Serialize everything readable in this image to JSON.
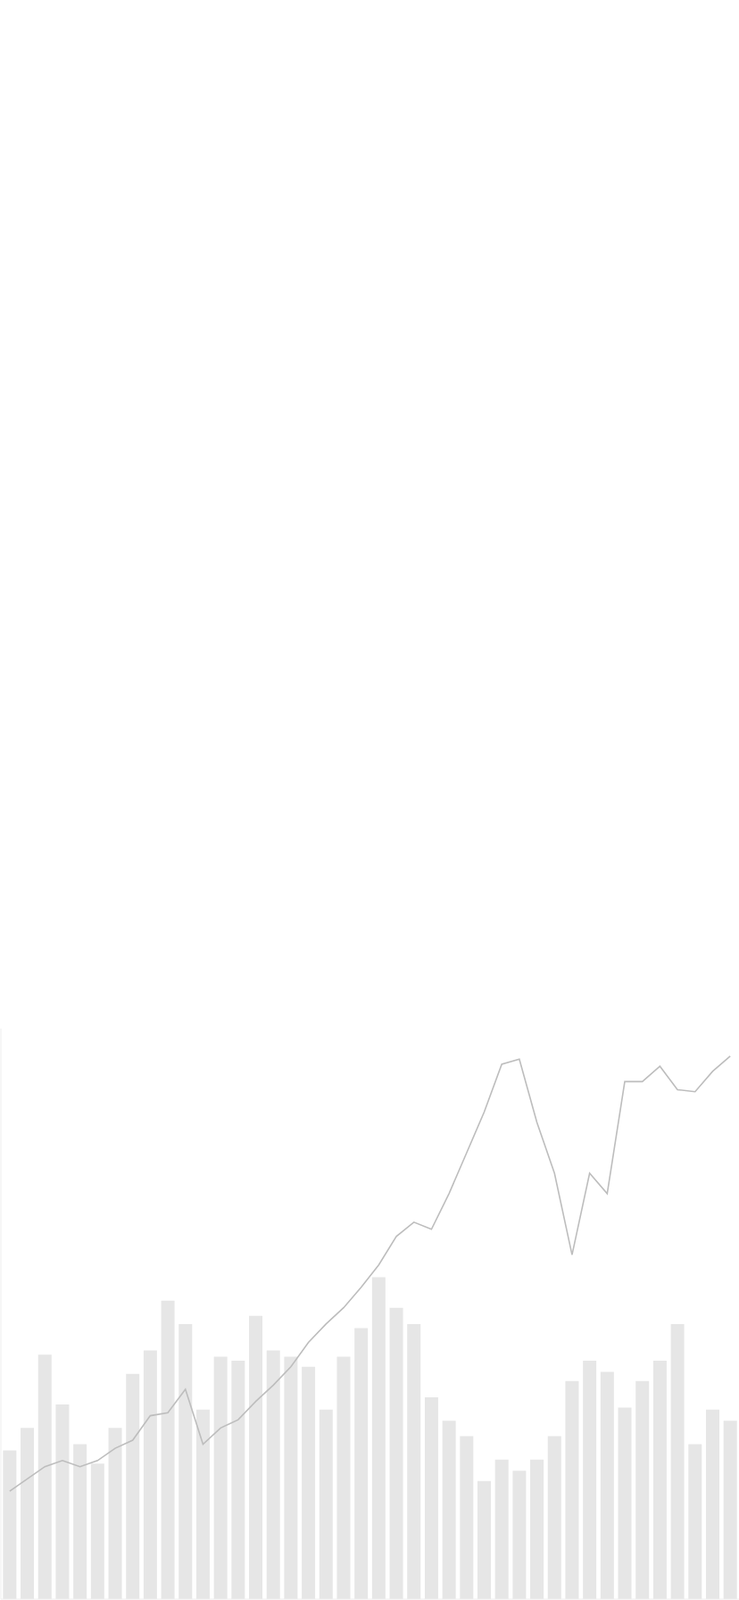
{
  "chart_data": {
    "type": "bar",
    "categories": [
      null,
      null,
      null,
      null,
      null,
      null,
      null,
      null,
      null,
      null,
      null,
      null,
      null,
      null,
      null,
      null,
      null,
      null,
      null,
      null,
      null,
      null,
      null,
      null,
      null,
      null,
      null,
      null,
      null,
      null,
      null,
      null,
      null,
      null,
      null,
      null,
      null,
      null,
      null,
      null,
      null,
      null
    ],
    "series": [
      {
        "type": "bar",
        "color": "#e6e6e6",
        "values": [
          146,
          168,
          240,
          191,
          152,
          133,
          168,
          221,
          244,
          293,
          270,
          186,
          238,
          234,
          278,
          244,
          238,
          228,
          186,
          238,
          266,
          316,
          286,
          270,
          198,
          175,
          160,
          116,
          137,
          126,
          137,
          160,
          214,
          234,
          223,
          188,
          214,
          234,
          270,
          152,
          186,
          175
        ]
      },
      {
        "type": "line",
        "color": "#bdbdbd",
        "marker": "none",
        "values": [
          106,
          118,
          130,
          136,
          130,
          136,
          148,
          156,
          180,
          183,
          206,
          152,
          168,
          176,
          194,
          210,
          228,
          252,
          270,
          286,
          306,
          328,
          356,
          370,
          363,
          398,
          438,
          478,
          525,
          530,
          468,
          418,
          338,
          418,
          398,
          508,
          508,
          523,
          500,
          498,
          518,
          533
        ]
      }
    ],
    "ylim": [
      0,
      560
    ],
    "tick_labels": false,
    "grid": false
  }
}
